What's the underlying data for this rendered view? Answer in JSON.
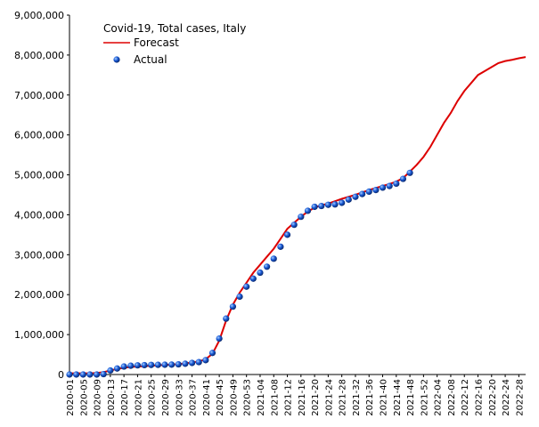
{
  "chart_data": {
    "type": "line",
    "title": "Covid-19, Total cases, Italy",
    "categories": [
      "2020-01",
      null,
      "2020-05",
      null,
      "2020-09",
      null,
      "2020-13",
      null,
      "2020-17",
      null,
      "2020-21",
      null,
      "2020-25",
      null,
      "2020-29",
      null,
      "2020-33",
      null,
      "2020-37",
      null,
      "2020-41",
      null,
      "2020-45",
      null,
      "2020-49",
      null,
      "2020-53",
      null,
      "2021-04",
      null,
      "2021-08",
      null,
      "2021-12",
      null,
      "2021-16",
      null,
      "2021-20",
      null,
      "2021-24",
      null,
      "2021-28",
      null,
      "2021-32",
      null,
      "2021-36",
      null,
      "2021-40",
      null,
      "2021-44",
      null,
      "2021-48",
      null,
      "2021-52",
      null,
      "2022-04",
      null,
      "2022-08",
      null,
      "2022-12",
      null,
      "2022-16",
      null,
      "2022-20",
      null,
      "2022-24",
      null,
      "2022-28",
      null
    ],
    "series": [
      {
        "name": "Forecast",
        "color": "#dd0000",
        "style": "line",
        "values": [
          30000,
          30000,
          30000,
          30000,
          40000,
          60000,
          100000,
          140000,
          170000,
          190000,
          200000,
          210000,
          220000,
          230000,
          240000,
          250000,
          260000,
          280000,
          300000,
          330000,
          380000,
          520000,
          850000,
          1350000,
          1750000,
          2050000,
          2300000,
          2550000,
          2750000,
          2950000,
          3150000,
          3400000,
          3650000,
          3800000,
          3950000,
          4080000,
          4180000,
          4240000,
          4280000,
          4340000,
          4400000,
          4450000,
          4500000,
          4560000,
          4620000,
          4670000,
          4720000,
          4770000,
          4830000,
          4920000,
          5080000,
          5250000,
          5450000,
          5700000,
          6000000,
          6300000,
          6550000,
          6850000,
          7100000,
          7300000,
          7500000,
          7600000,
          7700000,
          7800000,
          7850000,
          7880000,
          7920000,
          7950000
        ]
      },
      {
        "name": "Actual",
        "color": "#1a5ad6",
        "style": "points",
        "values": [
          0,
          0,
          0,
          0,
          0,
          10000,
          100000,
          150000,
          200000,
          220000,
          230000,
          235000,
          240000,
          242000,
          245000,
          248000,
          255000,
          270000,
          290000,
          310000,
          360000,
          540000,
          900000,
          1400000,
          1700000,
          1950000,
          2200000,
          2400000,
          2550000,
          2700000,
          2900000,
          3200000,
          3500000,
          3750000,
          3950000,
          4100000,
          4200000,
          4220000,
          4250000,
          4260000,
          4300000,
          4380000,
          4450000,
          4520000,
          4580000,
          4620000,
          4680000,
          4720000,
          4780000,
          4900000,
          5050000,
          null,
          null,
          null,
          null,
          null,
          null,
          null,
          null,
          null,
          null,
          null,
          null,
          null,
          null,
          null,
          null,
          null
        ]
      }
    ],
    "ylim": [
      0,
      9000000
    ],
    "yticks": [
      0,
      {
        "value": 1000000,
        "label": "1,000,000"
      },
      {
        "value": 2000000,
        "label": "2,000,000"
      },
      {
        "value": 3000000,
        "label": "3,000,000"
      },
      {
        "value": 4000000,
        "label": "4,000,000"
      },
      {
        "value": 5000000,
        "label": "5,000,000"
      },
      {
        "value": 6000000,
        "label": "6,000,000"
      },
      {
        "value": 7000000,
        "label": "7,000,000"
      },
      {
        "value": 8000000,
        "label": "8,000,000"
      },
      {
        "value": 9000000,
        "label": "9,000,000"
      }
    ],
    "grid": false
  }
}
